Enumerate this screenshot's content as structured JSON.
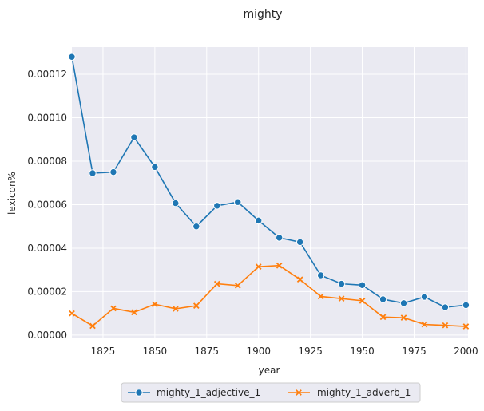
{
  "chart_data": {
    "type": "line",
    "title": "mighty",
    "xlabel": "year",
    "ylabel": "lexicon%",
    "xlim": [
      1810,
      2001
    ],
    "ylim": [
      -1.5e-06,
      0.0001325
    ],
    "xticks": [
      1825,
      1850,
      1875,
      1900,
      1925,
      1950,
      1975,
      2000
    ],
    "xtick_labels": [
      "1825",
      "1850",
      "1875",
      "1900",
      "1925",
      "1950",
      "1975",
      "2000"
    ],
    "yticks": [
      0.0,
      2e-05,
      4e-05,
      6e-05,
      8e-05,
      0.0001,
      0.00012
    ],
    "ytick_labels": [
      "0.00000",
      "0.00002",
      "0.00004",
      "0.00006",
      "0.00008",
      "0.00010",
      "0.00012"
    ],
    "grid": true,
    "legend_position": "bottom-center",
    "x": [
      1810,
      1820,
      1830,
      1840,
      1850,
      1860,
      1870,
      1880,
      1890,
      1900,
      1910,
      1920,
      1930,
      1940,
      1950,
      1960,
      1970,
      1980,
      1990,
      2000
    ],
    "series": [
      {
        "name": "mighty_1_adjective_1",
        "color": "#1f77b4",
        "marker": "circle",
        "values": [
          0.000128,
          7.45e-05,
          7.5e-05,
          9.1e-05,
          7.73e-05,
          6.07e-05,
          5e-05,
          5.95e-05,
          6.12e-05,
          5.27e-05,
          4.48e-05,
          4.28e-05,
          2.75e-05,
          2.36e-05,
          2.3e-05,
          1.65e-05,
          1.47e-05,
          1.76e-05,
          1.28e-05,
          1.38e-05
        ]
      },
      {
        "name": "mighty_1_adverb_1",
        "color": "#ff7f0e",
        "marker": "x",
        "values": [
          1e-05,
          4.2e-06,
          1.23e-05,
          1.05e-05,
          1.42e-05,
          1.21e-05,
          1.35e-05,
          2.36e-05,
          2.28e-05,
          3.15e-05,
          3.2e-05,
          2.56e-05,
          1.78e-05,
          1.68e-05,
          1.58e-05,
          8.3e-06,
          8e-06,
          4.9e-06,
          4.5e-06,
          4e-06
        ]
      }
    ]
  }
}
